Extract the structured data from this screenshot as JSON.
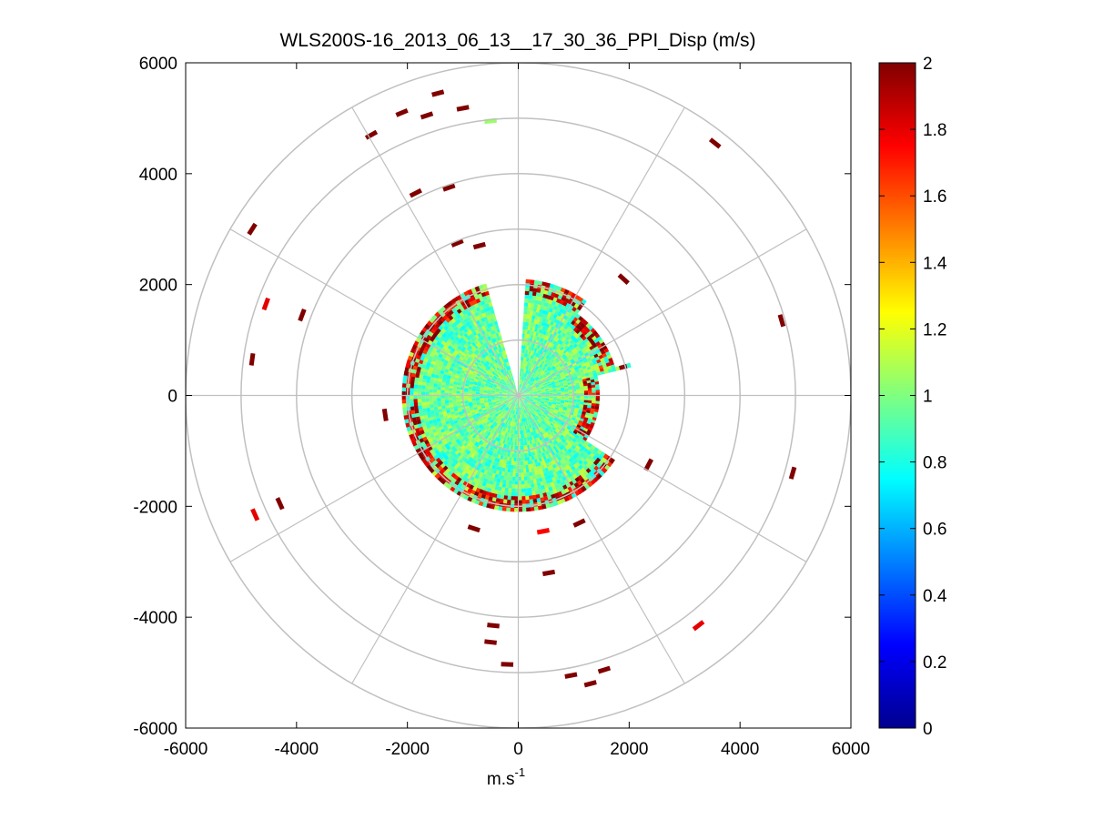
{
  "chart_data": {
    "type": "heatmap",
    "title": "WLS200S-16_2013_06_13__17_30_36_PPI_Disp (m/s)",
    "xlabel_base": "m.s",
    "xlabel_exponent": "-1",
    "ylabel": "",
    "xlim": [
      -6000,
      6000
    ],
    "ylim": [
      -6000,
      6000
    ],
    "xticks": [
      -6000,
      -4000,
      -2000,
      0,
      2000,
      4000,
      6000
    ],
    "yticks": [
      6000,
      4000,
      2000,
      0,
      -2000,
      -4000,
      -6000
    ],
    "xtick_labels": [
      "-6000",
      "-4000",
      "-2000",
      "0",
      "2000",
      "4000",
      "6000"
    ],
    "ytick_labels": [
      "6000",
      "4000",
      "2000",
      "0",
      "-2000",
      "-4000",
      "-6000"
    ],
    "colorbar": {
      "colormap": "jet",
      "range": [
        0,
        2
      ],
      "ticks": [
        0,
        0.2,
        0.4,
        0.6,
        0.8,
        1,
        1.2,
        1.4,
        1.6,
        1.8,
        2
      ],
      "tick_labels": [
        "0",
        "0.2",
        "0.4",
        "0.6",
        "0.8",
        "1",
        "1.2",
        "1.4",
        "1.6",
        "1.8",
        "2"
      ]
    },
    "polar_grid": {
      "ring_radii": [
        1000,
        2000,
        3000,
        4000,
        5000,
        6000
      ],
      "spoke_angles_deg": [
        0,
        30,
        60,
        90,
        120,
        150,
        180,
        210,
        240,
        270,
        300,
        330
      ],
      "grid_color": "#c0c0c0"
    },
    "scan_core": {
      "r_min": 0,
      "r_max": 2100,
      "gap_sectors_deg": [
        [
          -5,
          3
        ],
        [
          345,
          362
        ]
      ],
      "typical_value": 0.95,
      "edge_value": 2.0
    },
    "outliers": [
      {
        "x": -1450,
        "y": 5450,
        "value": 2.0
      },
      {
        "x": -1000,
        "y": 5180,
        "value": 2.0
      },
      {
        "x": -2100,
        "y": 5100,
        "value": 2.0
      },
      {
        "x": -1650,
        "y": 5050,
        "value": 2.0
      },
      {
        "x": -2650,
        "y": 4700,
        "value": 2.0
      },
      {
        "x": -500,
        "y": 4950,
        "value": 1.05
      },
      {
        "x": 3550,
        "y": 4550,
        "value": 2.0
      },
      {
        "x": -1850,
        "y": 3650,
        "value": 2.0
      },
      {
        "x": -1250,
        "y": 3750,
        "value": 2.0
      },
      {
        "x": -4800,
        "y": 3000,
        "value": 2.0
      },
      {
        "x": -4550,
        "y": 1650,
        "value": 1.8
      },
      {
        "x": -3900,
        "y": 1450,
        "value": 2.0
      },
      {
        "x": -4800,
        "y": 650,
        "value": 2.0
      },
      {
        "x": -1100,
        "y": 2750,
        "value": 2.0
      },
      {
        "x": -700,
        "y": 2700,
        "value": 2.0
      },
      {
        "x": 1900,
        "y": 2100,
        "value": 2.0
      },
      {
        "x": 4750,
        "y": 1350,
        "value": 2.0
      },
      {
        "x": 4950,
        "y": -1400,
        "value": 2.0
      },
      {
        "x": 2350,
        "y": -1250,
        "value": 2.0
      },
      {
        "x": -4750,
        "y": -2150,
        "value": 1.8
      },
      {
        "x": -4300,
        "y": -1950,
        "value": 2.0
      },
      {
        "x": -2400,
        "y": -350,
        "value": 2.0
      },
      {
        "x": -800,
        "y": -2400,
        "value": 2.0
      },
      {
        "x": 450,
        "y": -2450,
        "value": 1.75
      },
      {
        "x": 1100,
        "y": -2300,
        "value": 2.0
      },
      {
        "x": 550,
        "y": -3200,
        "value": 2.0
      },
      {
        "x": 3250,
        "y": -4150,
        "value": 1.8
      },
      {
        "x": -450,
        "y": -4150,
        "value": 2.0
      },
      {
        "x": -500,
        "y": -4450,
        "value": 2.0
      },
      {
        "x": -200,
        "y": -4850,
        "value": 2.0
      },
      {
        "x": 950,
        "y": -5050,
        "value": 2.0
      },
      {
        "x": 1300,
        "y": -5200,
        "value": 2.0
      },
      {
        "x": 1550,
        "y": -4950,
        "value": 2.0
      }
    ]
  }
}
